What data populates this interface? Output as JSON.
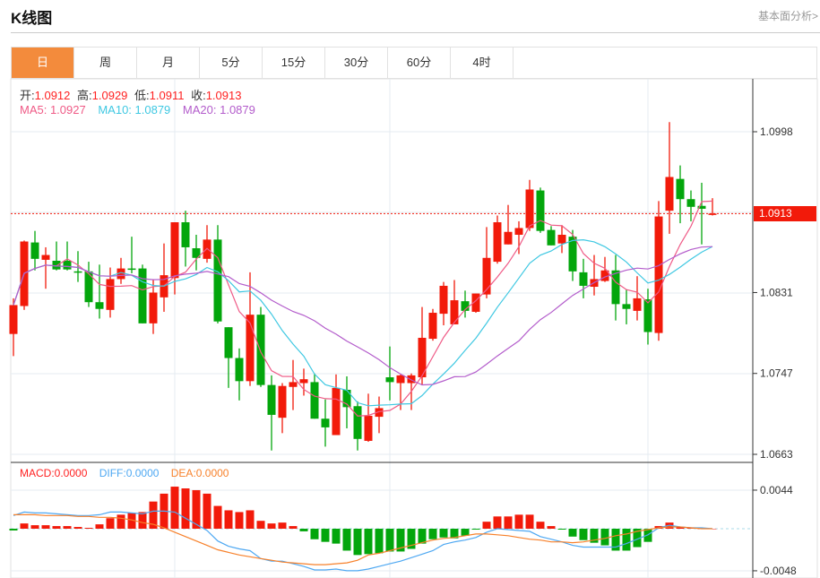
{
  "header": {
    "title": "K线图",
    "link": "基本面分析>"
  },
  "tabs": [
    {
      "label": "日",
      "active": true
    },
    {
      "label": "周"
    },
    {
      "label": "月"
    },
    {
      "label": "5分"
    },
    {
      "label": "15分"
    },
    {
      "label": "30分"
    },
    {
      "label": "60分"
    },
    {
      "label": "4时"
    }
  ],
  "ohlc": {
    "open_label": "开:",
    "open": "1.0912",
    "high_label": "高:",
    "high": "1.0929",
    "low_label": "低:",
    "low": "1.0911",
    "close_label": "收:",
    "close": "1.0913"
  },
  "ma": {
    "ma5": "MA5: 1.0927",
    "ma10": "MA10: 1.0879",
    "ma20": "MA20: 1.0879"
  },
  "macd_legend": {
    "macd": "MACD:0.0000",
    "diff": "DIFF:0.0000",
    "dea": "DEA:0.0000"
  },
  "colors": {
    "up": "#f21a0a",
    "down": "#03a60c",
    "ma5": "#ef5a86",
    "ma10": "#3fc8e2",
    "ma20": "#b35ccb",
    "diff": "#4ea8f2",
    "dea": "#f7812b",
    "accent": "#f38b3c"
  },
  "chart_data": {
    "type": "candlestick",
    "price_axis": {
      "ticks": [
        "1.0998",
        "1.0831",
        "1.0747",
        "1.0663"
      ],
      "tick_values": [
        1.0998,
        1.0831,
        1.0747,
        1.0663
      ],
      "range": [
        1.0663,
        1.0998
      ],
      "last_price": "1.0913",
      "last_value": 1.0913
    },
    "macd_axis": {
      "ticks": [
        "0.0044",
        "-0.0048"
      ],
      "tick_values": [
        0.0044,
        -0.0048
      ]
    },
    "candles": [
      [
        1.0788,
        1.0818,
        1.0825,
        1.0765
      ],
      [
        1.0817,
        1.0884,
        1.0885,
        1.0813
      ],
      [
        1.0883,
        1.0866,
        1.0895,
        1.0854
      ],
      [
        1.0865,
        1.087,
        1.0878,
        1.0835
      ],
      [
        1.0864,
        1.0855,
        1.0884,
        1.0854
      ],
      [
        1.0864,
        1.0855,
        1.0884,
        1.0854
      ],
      [
        1.0853,
        1.0852,
        1.0874,
        1.0842
      ],
      [
        1.0853,
        1.0821,
        1.0863,
        1.0816
      ],
      [
        1.0821,
        1.0814,
        1.086,
        1.0804
      ],
      [
        1.0813,
        1.0845,
        1.0857,
        1.0805
      ],
      [
        1.0845,
        1.0856,
        1.0867,
        1.084
      ],
      [
        1.0856,
        1.0855,
        1.0889,
        1.0851
      ],
      [
        1.0856,
        1.0799,
        1.086,
        1.0799
      ],
      [
        1.0799,
        1.0831,
        1.0844,
        1.0788
      ],
      [
        1.0826,
        1.0849,
        1.0882,
        1.0811
      ],
      [
        1.0846,
        1.0904,
        1.0904,
        1.0829
      ],
      [
        1.0904,
        1.0878,
        1.0916,
        1.0858
      ],
      [
        1.0877,
        1.0867,
        1.0891,
        1.0854
      ],
      [
        1.0866,
        1.0886,
        1.0901,
        1.0862
      ],
      [
        1.0886,
        1.0801,
        1.0901,
        1.0799
      ],
      [
        1.0795,
        1.0763,
        1.0795,
        1.0732
      ],
      [
        1.0763,
        1.0739,
        1.0773,
        1.0719
      ],
      [
        1.0739,
        1.0808,
        1.0852,
        1.0734
      ],
      [
        1.0808,
        1.0735,
        1.0816,
        1.0733
      ],
      [
        1.0735,
        1.0704,
        1.0745,
        1.0667
      ],
      [
        1.0701,
        1.0734,
        1.0737,
        1.0685
      ],
      [
        1.0733,
        1.0738,
        1.0761,
        1.0709
      ],
      [
        1.0737,
        1.0741,
        1.0752,
        1.0724
      ],
      [
        1.0738,
        1.07,
        1.0747,
        1.07
      ],
      [
        1.07,
        1.0691,
        1.072,
        1.0671
      ],
      [
        1.0683,
        1.0732,
        1.0746,
        1.0683
      ],
      [
        1.073,
        1.0712,
        1.0744,
        1.069
      ],
      [
        1.0713,
        1.0679,
        1.0718,
        1.0667
      ],
      [
        1.0677,
        1.0703,
        1.0726,
        1.0676
      ],
      [
        1.0702,
        1.0711,
        1.0723,
        1.0685
      ],
      [
        1.0743,
        1.0738,
        1.0775,
        1.0719
      ],
      [
        1.0737,
        1.0745,
        1.0746,
        1.0709
      ],
      [
        1.0737,
        1.0745,
        1.0747,
        1.0709
      ],
      [
        1.0743,
        1.0784,
        1.0816,
        1.0735
      ],
      [
        1.0783,
        1.081,
        1.0814,
        1.0781
      ],
      [
        1.0809,
        1.0838,
        1.0842,
        1.0797
      ],
      [
        1.0798,
        1.0823,
        1.0844,
        1.0798
      ],
      [
        1.0822,
        1.0812,
        1.0833,
        1.0805
      ],
      [
        1.0811,
        1.083,
        1.083,
        1.081
      ],
      [
        1.0829,
        1.0867,
        1.0899,
        1.0825
      ],
      [
        1.0863,
        1.0904,
        1.0911,
        1.0861
      ],
      [
        1.0881,
        1.0894,
        1.0922,
        1.0881
      ],
      [
        1.0891,
        1.0898,
        1.0905,
        1.0871
      ],
      [
        1.0898,
        1.0938,
        1.0948,
        1.0895
      ],
      [
        1.0937,
        1.0895,
        1.094,
        1.0893
      ],
      [
        1.0896,
        1.088,
        1.09,
        1.088
      ],
      [
        1.0882,
        1.0891,
        1.0901,
        1.0872
      ],
      [
        1.0889,
        1.0853,
        1.0896,
        1.0843
      ],
      [
        1.0852,
        1.0838,
        1.0866,
        1.0825
      ],
      [
        1.0837,
        1.0845,
        1.087,
        1.0828
      ],
      [
        1.0843,
        1.0854,
        1.0868,
        1.0842
      ],
      [
        1.0854,
        1.0819,
        1.087,
        1.0802
      ],
      [
        1.0819,
        1.0814,
        1.0834,
        1.0798
      ],
      [
        1.0812,
        1.0825,
        1.0848,
        1.0802
      ],
      [
        1.0824,
        1.079,
        1.0835,
        1.0777
      ],
      [
        1.0789,
        1.091,
        1.0926,
        1.0781
      ],
      [
        1.0916,
        1.0951,
        1.1008,
        1.0892
      ],
      [
        1.0949,
        1.0928,
        1.0963,
        1.0903
      ],
      [
        1.0928,
        1.092,
        1.0937,
        1.0905
      ],
      [
        1.0921,
        1.0918,
        1.0945,
        1.0881
      ],
      [
        1.0912,
        1.0913,
        1.0929,
        1.0911
      ]
    ],
    "macd_hist": [
      -0.0002,
      0.0006,
      0.0004,
      0.0004,
      0.0003,
      0.0003,
      0.0002,
      0.0001,
      0.0005,
      0.0012,
      0.0016,
      0.0018,
      0.0019,
      0.0031,
      0.004,
      0.0048,
      0.0046,
      0.0044,
      0.004,
      0.0026,
      0.0021,
      0.0019,
      0.0021,
      0.0009,
      0.0006,
      0.0007,
      0.0003,
      -0.0003,
      -0.0012,
      -0.0015,
      -0.0017,
      -0.0025,
      -0.003,
      -0.0029,
      -0.0028,
      -0.0026,
      -0.0026,
      -0.0023,
      -0.0017,
      -0.0012,
      -0.001,
      -0.0011,
      -0.0008,
      -0.0001,
      0.0008,
      0.0014,
      0.0014,
      0.0016,
      0.0016,
      0.0008,
      0.0003,
      -0.0001,
      -0.0009,
      -0.0013,
      -0.0016,
      -0.0019,
      -0.0025,
      -0.0025,
      -0.0021,
      -0.0015,
      0.0003,
      0.0007,
      0.0002,
      0.0001,
      0.0,
      0.0
    ],
    "diff": [
      0.0015,
      0.0019,
      0.0018,
      0.0018,
      0.0017,
      0.0016,
      0.0015,
      0.0015,
      0.0016,
      0.0019,
      0.0019,
      0.0018,
      0.0017,
      0.002,
      0.002,
      0.0019,
      0.0012,
      0.0005,
      -0.0002,
      -0.0014,
      -0.002,
      -0.0023,
      -0.0025,
      -0.0034,
      -0.0037,
      -0.0037,
      -0.004,
      -0.0043,
      -0.0047,
      -0.0047,
      -0.0046,
      -0.0048,
      -0.0048,
      -0.0046,
      -0.0043,
      -0.004,
      -0.0037,
      -0.0033,
      -0.0029,
      -0.0025,
      -0.0018,
      -0.0015,
      -0.0013,
      -0.001,
      -0.0004,
      0.0,
      -0.0001,
      -0.0002,
      -0.0003,
      -0.0009,
      -0.0012,
      -0.0015,
      -0.0019,
      -0.0021,
      -0.0021,
      -0.0021,
      -0.0021,
      -0.0017,
      -0.0012,
      -0.0007,
      0.0001,
      0.0004,
      0.0002,
      0.0001,
      0.0001,
      0.0
    ],
    "dea": [
      0.0016,
      0.0016,
      0.0016,
      0.0015,
      0.0015,
      0.0015,
      0.0014,
      0.0014,
      0.0013,
      0.0013,
      0.0012,
      0.001,
      0.0007,
      0.0005,
      0.0001,
      -0.0004,
      -0.0009,
      -0.0014,
      -0.0019,
      -0.0024,
      -0.0027,
      -0.003,
      -0.0032,
      -0.0034,
      -0.0036,
      -0.0038,
      -0.0039,
      -0.004,
      -0.0041,
      -0.0041,
      -0.004,
      -0.0039,
      -0.0036,
      -0.003,
      -0.0028,
      -0.0025,
      -0.0022,
      -0.0019,
      -0.0016,
      -0.0013,
      -0.0011,
      -0.001,
      -0.0008,
      -0.0006,
      -0.0006,
      -0.0007,
      -0.0008,
      -0.001,
      -0.0012,
      -0.0013,
      -0.0015,
      -0.0015,
      -0.0016,
      -0.0015,
      -0.0013,
      -0.0011,
      -0.0008,
      -0.0006,
      -0.0003,
      -0.0001,
      0.0001,
      0.0002,
      0.0002,
      0.0001,
      0.0,
      0.0
    ]
  }
}
